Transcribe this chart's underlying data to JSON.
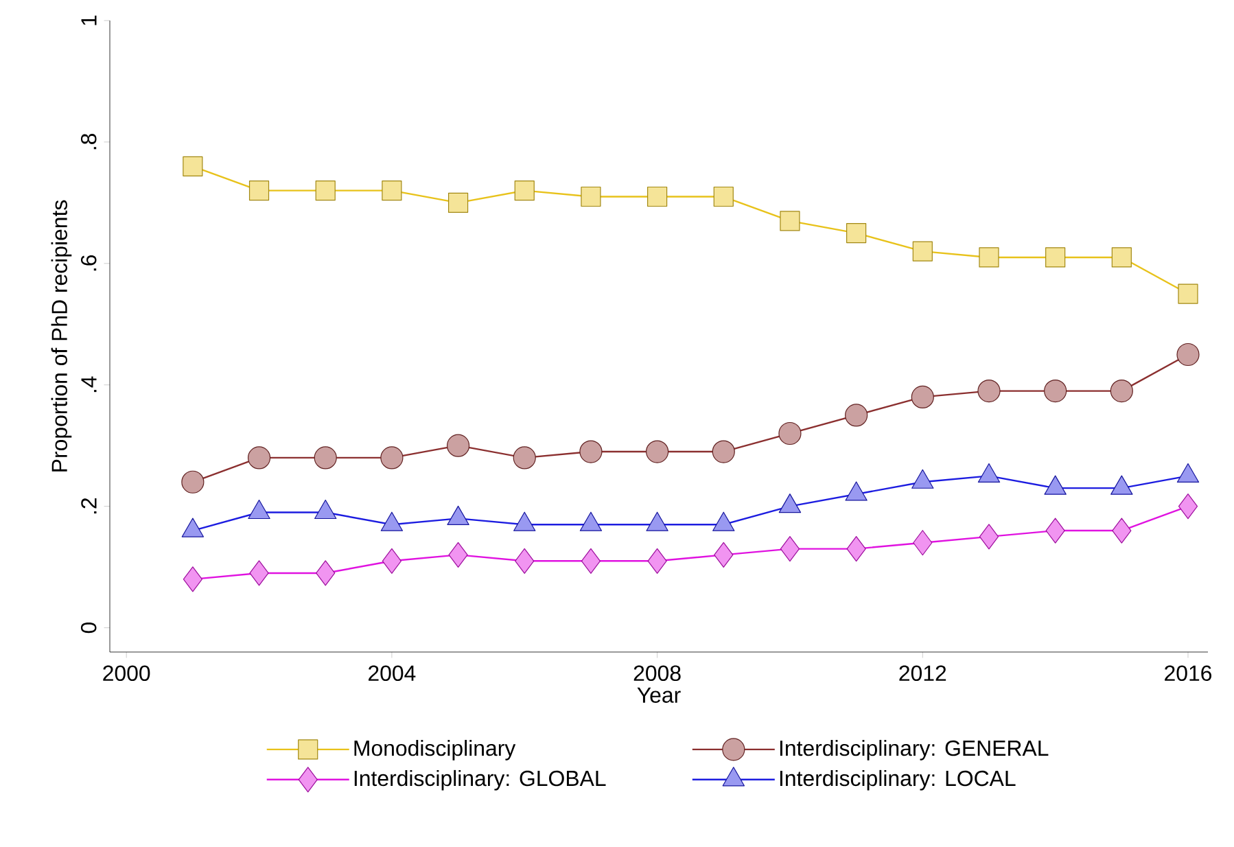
{
  "chart_data": {
    "type": "line",
    "xlabel": "Year",
    "ylabel": "Proportion of PhD recipients",
    "x": [
      2001,
      2002,
      2003,
      2004,
      2005,
      2006,
      2007,
      2008,
      2009,
      2010,
      2011,
      2012,
      2013,
      2014,
      2015,
      2016
    ],
    "series": [
      {
        "name": "Monodisciplinary",
        "color": "#e8c21a",
        "marker": "square",
        "values": [
          0.76,
          0.72,
          0.72,
          0.72,
          0.7,
          0.72,
          0.71,
          0.71,
          0.71,
          0.67,
          0.65,
          0.62,
          0.61,
          0.61,
          0.61,
          0.55
        ]
      },
      {
        "name": "Interdisciplinary: GENERAL",
        "color": "#8b2f2f",
        "marker": "circle",
        "values": [
          0.24,
          0.28,
          0.28,
          0.28,
          0.3,
          0.28,
          0.29,
          0.29,
          0.29,
          0.32,
          0.35,
          0.38,
          0.39,
          0.39,
          0.39,
          0.45
        ]
      },
      {
        "name": "Interdisciplinary: GLOBAL",
        "color": "#e012e0",
        "marker": "diamond",
        "values": [
          0.08,
          0.09,
          0.09,
          0.11,
          0.12,
          0.11,
          0.11,
          0.11,
          0.12,
          0.13,
          0.13,
          0.14,
          0.15,
          0.16,
          0.16,
          0.2
        ]
      },
      {
        "name": "Interdisciplinary: LOCAL",
        "color": "#1c1ce0",
        "marker": "triangle",
        "values": [
          0.16,
          0.19,
          0.19,
          0.17,
          0.18,
          0.17,
          0.17,
          0.17,
          0.17,
          0.2,
          0.22,
          0.24,
          0.25,
          0.23,
          0.23,
          0.25
        ]
      }
    ],
    "xlim": [
      1999.75,
      2016.3
    ],
    "ylim": [
      -0.04,
      1.0
    ],
    "xticks": [
      2000,
      2004,
      2008,
      2012,
      2016
    ],
    "yticks": [
      0,
      {
        "value": 0.2,
        "label": ".2"
      },
      {
        "value": 0.4,
        "label": ".4"
      },
      {
        "value": 0.6,
        "label": ".6"
      },
      {
        "value": 0.8,
        "label": ".8"
      },
      1
    ],
    "legend": "bottom",
    "grid": false,
    "line_style": "solid"
  }
}
